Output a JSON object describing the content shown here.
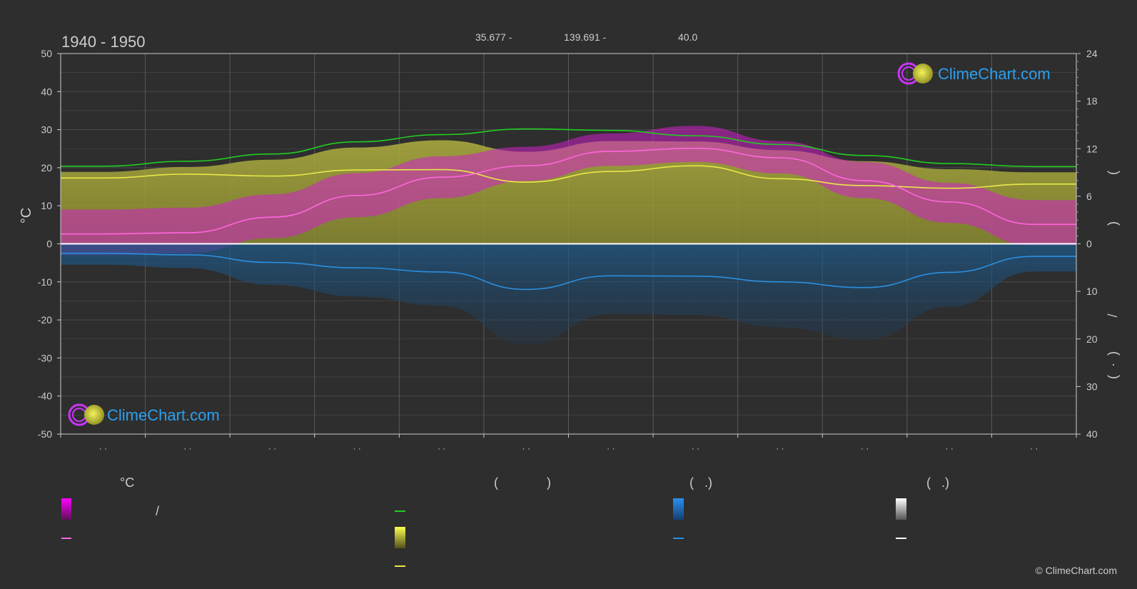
{
  "header": {
    "period": "1940 - 1950",
    "lat": "35.677 -",
    "lon": "139.691 -",
    "elev": "40.0"
  },
  "chart_data": {
    "type": "area",
    "months": 12,
    "y_left": {
      "label": "°C",
      "range": [
        -50,
        50
      ],
      "ticks": [
        "50",
        "40",
        "30",
        "20",
        "10",
        "0",
        "-10",
        "-20",
        "-30",
        "-40",
        "-50"
      ]
    },
    "y_right_top": {
      "ticks": [
        "24",
        "18",
        "12",
        "6",
        "0"
      ],
      "label_glyphs": [
        "(",
        ")"
      ]
    },
    "y_right_bottom": {
      "ticks": [
        "0",
        "10",
        "20",
        "30",
        "40"
      ],
      "label_glyphs": [
        "/",
        "(",
        "·",
        ")"
      ]
    },
    "x_tick_glyph": "· ·",
    "series": {
      "daylight": [
        20.4,
        21.7,
        23.6,
        26.8,
        28.7,
        30.2,
        29.8,
        28.4,
        26.1,
        23.2,
        21.1,
        20.3
      ],
      "sunshine": [
        17.3,
        18.3,
        17.8,
        19.4,
        19.5,
        16.2,
        19.0,
        20.5,
        17.1,
        15.3,
        14.6,
        15.7
      ],
      "mean_temp": [
        2.6,
        2.9,
        7.0,
        12.7,
        17.5,
        20.5,
        24.3,
        25.1,
        22.6,
        16.6,
        11.0,
        5.1
      ],
      "precip": [
        -2.5,
        -2.9,
        -4.9,
        -6.3,
        -7.4,
        -12.0,
        -8.4,
        -8.5,
        -10.0,
        -11.5,
        -7.5,
        -3.3
      ],
      "temp_max": [
        9.0,
        9.5,
        13.0,
        18.6,
        23.0,
        25.5,
        29.0,
        31.0,
        27.0,
        21.5,
        16.0,
        11.5
      ],
      "temp_min": [
        -3.0,
        -2.5,
        1.5,
        7.0,
        12.0,
        16.5,
        20.5,
        21.5,
        18.5,
        12.0,
        5.5,
        -0.5
      ]
    },
    "colors": {
      "daylight": "#22cc22",
      "sunshine": "#e8e84a",
      "mean_temp": "#ff66dd",
      "precip": "#2a8fe0",
      "temp_band": "#d020c8",
      "sun_band": "#a8a83a",
      "snow": "#ffffff",
      "zero_line": "#ffffff",
      "logo_text": "#2aa0f0"
    },
    "grid": true
  },
  "legend": {
    "col1_title": "°C",
    "col2_title_open": "(",
    "col2_title_close": ")",
    "col3_title": "(   .)",
    "col4_title": "(   .)",
    "slash": "/"
  },
  "logo": {
    "text": "ClimeChart.com"
  },
  "copyright": "© ClimeChart.com"
}
